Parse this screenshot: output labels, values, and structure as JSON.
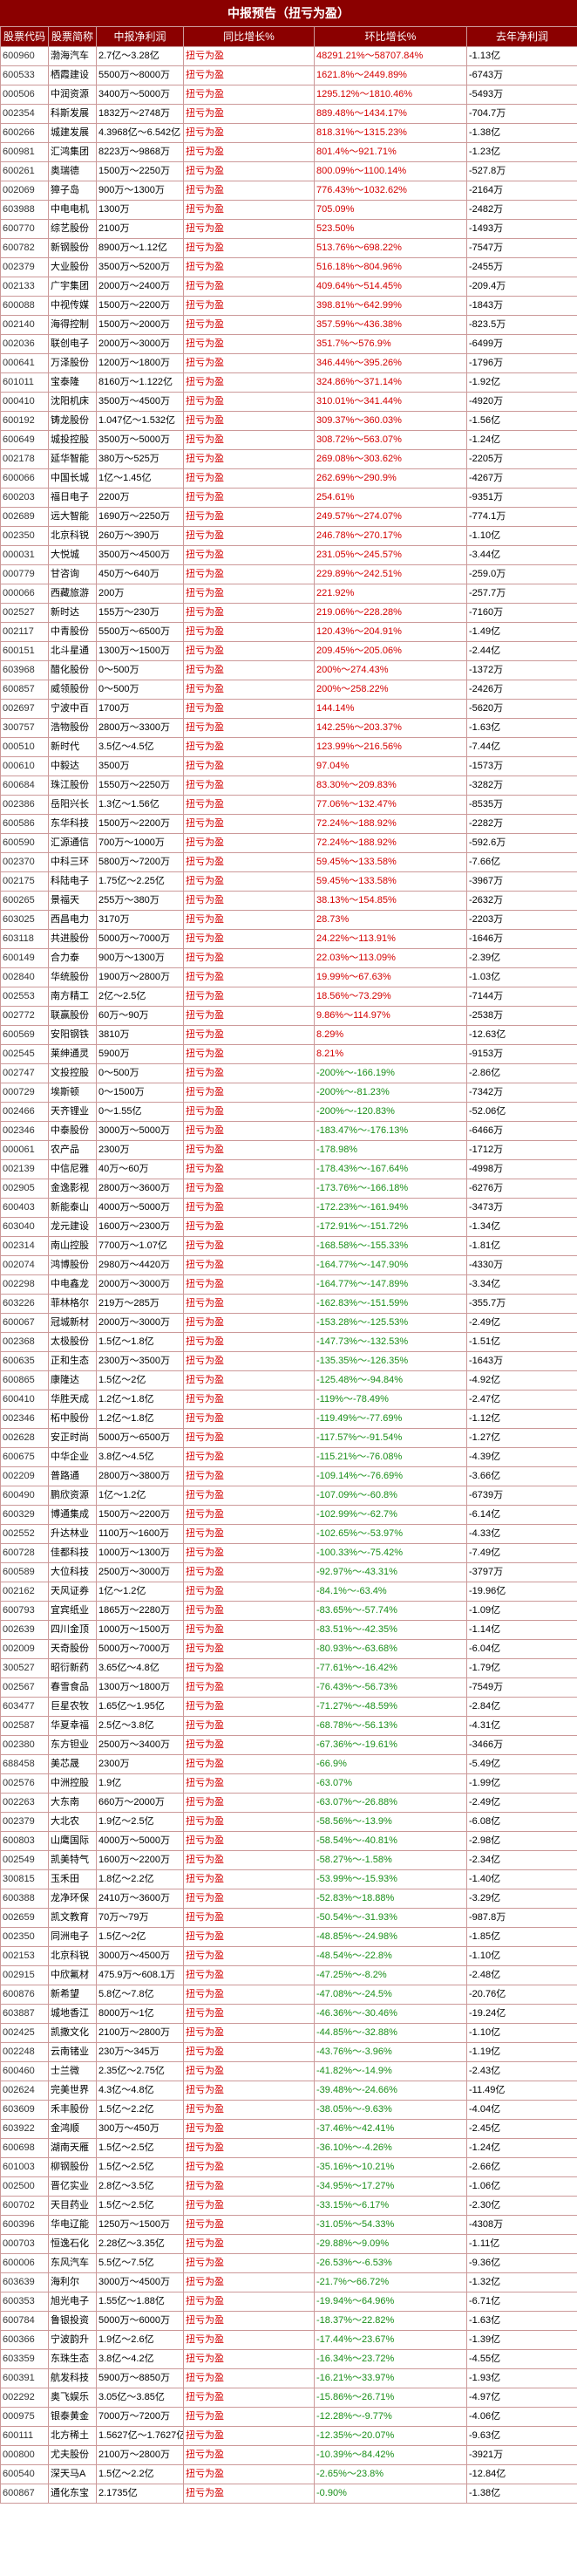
{
  "title": "中报预告（扭亏为盈）",
  "columns": [
    "股票代码",
    "股票简称",
    "中报净利润",
    "同比增长%",
    "环比增长%",
    "去年净利润"
  ],
  "rows": [
    [
      "600960",
      "渤海汽车",
      "2.7亿～3.28亿",
      "扭亏为盈",
      "48291.21%～58707.84%",
      "-1.13亿"
    ],
    [
      "600533",
      "栖霞建设",
      "5500万～8000万",
      "扭亏为盈",
      "1621.8%～2449.89%",
      "-6743万"
    ],
    [
      "000506",
      "中润资源",
      "3400万～5000万",
      "扭亏为盈",
      "1295.12%～1810.46%",
      "-5493万"
    ],
    [
      "002354",
      "科斯发展",
      "1832万～2748万",
      "扭亏为盈",
      "889.48%～1434.17%",
      "-704.7万"
    ],
    [
      "600266",
      "城建发展",
      "4.3968亿～6.542亿",
      "扭亏为盈",
      "818.31%～1315.23%",
      "-1.38亿"
    ],
    [
      "600981",
      "汇鸿集团",
      "8223万～9868万",
      "扭亏为盈",
      "801.4%～921.71%",
      "-1.23亿"
    ],
    [
      "600261",
      "奥瑞德",
      "1500万～2250万",
      "扭亏为盈",
      "800.09%～1100.14%",
      "-527.8万"
    ],
    [
      "002069",
      "獐子岛",
      "900万～1300万",
      "扭亏为盈",
      "776.43%～1032.62%",
      "-2164万"
    ],
    [
      "603988",
      "中电电机",
      "1300万",
      "扭亏为盈",
      "705.09%",
      "-2482万"
    ],
    [
      "600770",
      "综艺股份",
      "2100万",
      "扭亏为盈",
      "523.50%",
      "-1493万"
    ],
    [
      "600782",
      "新钢股份",
      "8900万～1.12亿",
      "扭亏为盈",
      "513.76%～698.22%",
      "-7547万"
    ],
    [
      "002379",
      "大业股份",
      "3500万～5200万",
      "扭亏为盈",
      "516.18%～804.96%",
      "-2455万"
    ],
    [
      "002133",
      "广宇集团",
      "2000万～2400万",
      "扭亏为盈",
      "409.64%～514.45%",
      "-209.4万"
    ],
    [
      "600088",
      "中视传媒",
      "1500万～2200万",
      "扭亏为盈",
      "398.81%～642.99%",
      "-1843万"
    ],
    [
      "002140",
      "海得控制",
      "1500万～2000万",
      "扭亏为盈",
      "357.59%～436.38%",
      "-823.5万"
    ],
    [
      "002036",
      "联创电子",
      "2000万～3000万",
      "扭亏为盈",
      "351.7%～576.9%",
      "-6499万"
    ],
    [
      "000641",
      "万泽股份",
      "1200万～1800万",
      "扭亏为盈",
      "346.44%～395.26%",
      "-1796万"
    ],
    [
      "601011",
      "宝泰隆",
      "8160万～1.122亿",
      "扭亏为盈",
      "324.86%～371.14%",
      "-1.92亿"
    ],
    [
      "000410",
      "沈阳机床",
      "3500万～4500万",
      "扭亏为盈",
      "310.01%～341.44%",
      "-4920万"
    ],
    [
      "600192",
      "铸龙股份",
      "1.047亿～1.532亿",
      "扭亏为盈",
      "309.37%～360.03%",
      "-1.56亿"
    ],
    [
      "600649",
      "城投控股",
      "3500万～5000万",
      "扭亏为盈",
      "308.72%～563.07%",
      "-1.24亿"
    ],
    [
      "002178",
      "延华智能",
      "380万～525万",
      "扭亏为盈",
      "269.08%～303.62%",
      "-2205万"
    ],
    [
      "600066",
      "中国长城",
      "1亿～1.45亿",
      "扭亏为盈",
      "262.69%～290.9%",
      "-4267万"
    ],
    [
      "600203",
      "福日电子",
      "2200万",
      "扭亏为盈",
      "254.61%",
      "-9351万"
    ],
    [
      "002689",
      "远大智能",
      "1690万～2250万",
      "扭亏为盈",
      "249.57%～274.07%",
      "-774.1万"
    ],
    [
      "002350",
      "北京科锐",
      "260万～390万",
      "扭亏为盈",
      "246.78%～270.17%",
      "-1.10亿"
    ],
    [
      "000031",
      "大悦城",
      "3500万～4500万",
      "扭亏为盈",
      "231.05%～245.57%",
      "-3.44亿"
    ],
    [
      "000779",
      "甘咨询",
      "450万～640万",
      "扭亏为盈",
      "229.89%～242.51%",
      "-259.0万"
    ],
    [
      "000066",
      "西藏旅游",
      "200万",
      "扭亏为盈",
      "221.92%",
      "-257.7万"
    ],
    [
      "002527",
      "新时达",
      "155万～230万",
      "扭亏为盈",
      "219.06%～228.28%",
      "-7160万"
    ],
    [
      "002117",
      "中青股份",
      "5500万～6500万",
      "扭亏为盈",
      "120.43%～204.91%",
      "-1.49亿"
    ],
    [
      "600151",
      "北斗星通",
      "1300万～1500万",
      "扭亏为盈",
      "209.45%～205.06%",
      "-2.44亿"
    ],
    [
      "603968",
      "醋化股份",
      "0～500万",
      "扭亏为盈",
      "200%～274.43%",
      "-1372万"
    ],
    [
      "600857",
      "威领股份",
      "0～500万",
      "扭亏为盈",
      "200%～258.22%",
      "-2426万"
    ],
    [
      "002697",
      "宁波中百",
      "1700万",
      "扭亏为盈",
      "144.14%",
      "-5620万"
    ],
    [
      "300757",
      "浩物股份",
      "2800万～3300万",
      "扭亏为盈",
      "142.25%～203.37%",
      "-1.63亿"
    ],
    [
      "000510",
      "新时代",
      "3.5亿～4.5亿",
      "扭亏为盈",
      "123.99%～216.56%",
      "-7.44亿"
    ],
    [
      "000610",
      "中毅达",
      "3500万",
      "扭亏为盈",
      "97.04%",
      "-1573万"
    ],
    [
      "600684",
      "珠江股份",
      "1550万～2250万",
      "扭亏为盈",
      "83.30%～209.83%",
      "-3282万"
    ],
    [
      "002386",
      "岳阳兴长",
      "1.3亿～1.56亿",
      "扭亏为盈",
      "77.06%～132.47%",
      "-8535万"
    ],
    [
      "600586",
      "东华科技",
      "1500万～2200万",
      "扭亏为盈",
      "72.24%～188.92%",
      "-2282万"
    ],
    [
      "600590",
      "汇源通信",
      "700万～1000万",
      "扭亏为盈",
      "72.24%～188.92%",
      "-592.6万"
    ],
    [
      "002370",
      "中科三环",
      "5800万～7200万",
      "扭亏为盈",
      "59.45%～133.58%",
      "-7.66亿"
    ],
    [
      "002175",
      "科陆电子",
      "1.75亿～2.25亿",
      "扭亏为盈",
      "59.45%～133.58%",
      "-3967万"
    ],
    [
      "600265",
      "景福天",
      "255万～380万",
      "扭亏为盈",
      "38.13%～154.85%",
      "-2632万"
    ],
    [
      "603025",
      "西昌电力",
      "3170万",
      "扭亏为盈",
      "28.73%",
      "-2203万"
    ],
    [
      "603118",
      "共进股份",
      "5000万～7000万",
      "扭亏为盈",
      "24.22%～113.91%",
      "-1646万"
    ],
    [
      "600149",
      "合力泰",
      "900万～1300万",
      "扭亏为盈",
      "22.03%～113.09%",
      "-2.39亿"
    ],
    [
      "002840",
      "华统股份",
      "1900万～2800万",
      "扭亏为盈",
      "19.99%～67.63%",
      "-1.03亿"
    ],
    [
      "002553",
      "南方精工",
      "2亿～2.5亿",
      "扭亏为盈",
      "18.56%～73.29%",
      "-7144万"
    ],
    [
      "002772",
      "联赢股份",
      "60万～90万",
      "扭亏为盈",
      "9.86%～114.97%",
      "-2538万"
    ],
    [
      "600569",
      "安阳钢铁",
      "3810万",
      "扭亏为盈",
      "8.29%",
      "-12.63亿"
    ],
    [
      "002545",
      "莱绅通灵",
      "5900万",
      "扭亏为盈",
      "8.21%",
      "-9153万"
    ],
    [
      "002747",
      "文投控股",
      "0～500万",
      "扭亏为盈",
      "-200%～-166.19%",
      "-2.86亿"
    ],
    [
      "000729",
      "埃斯顿",
      "0～1500万",
      "扭亏为盈",
      "-200%～-81.23%",
      "-7342万"
    ],
    [
      "002466",
      "天齐锂业",
      "0～1.55亿",
      "扭亏为盈",
      "-200%～-120.83%",
      "-52.06亿"
    ],
    [
      "002346",
      "中泰股份",
      "3000万～5000万",
      "扭亏为盈",
      "-183.47%～-176.13%",
      "-6466万"
    ],
    [
      "000061",
      "农产品",
      "2300万",
      "扭亏为盈",
      "-178.98%",
      "-1712万"
    ],
    [
      "002139",
      "中信尼雅",
      "40万～60万",
      "扭亏为盈",
      "-178.43%～-167.64%",
      "-4998万"
    ],
    [
      "002905",
      "金逸影视",
      "2800万～3600万",
      "扭亏为盈",
      "-173.76%～-166.18%",
      "-6276万"
    ],
    [
      "600403",
      "新能泰山",
      "4000万～5000万",
      "扭亏为盈",
      "-172.23%～-161.94%",
      "-3473万"
    ],
    [
      "603040",
      "龙元建设",
      "1600万～2300万",
      "扭亏为盈",
      "-172.91%～-151.72%",
      "-1.34亿"
    ],
    [
      "002314",
      "南山控股",
      "7700万～1.07亿",
      "扭亏为盈",
      "-168.58%～-155.33%",
      "-1.81亿"
    ],
    [
      "002074",
      "鸿博股份",
      "2980万～4420万",
      "扭亏为盈",
      "-164.77%～-147.90%",
      "-4330万"
    ],
    [
      "002298",
      "中电鑫龙",
      "2000万～3000万",
      "扭亏为盈",
      "-164.77%～-147.89%",
      "-3.34亿"
    ],
    [
      "603226",
      "菲林格尔",
      "219万～285万",
      "扭亏为盈",
      "-162.83%～-151.59%",
      "-355.7万"
    ],
    [
      "600067",
      "冠城新材",
      "2000万～3000万",
      "扭亏为盈",
      "-153.28%～-125.53%",
      "-2.49亿"
    ],
    [
      "002368",
      "太极股份",
      "1.5亿～1.8亿",
      "扭亏为盈",
      "-147.73%～-132.53%",
      "-1.51亿"
    ],
    [
      "600635",
      "正和生态",
      "2300万～3500万",
      "扭亏为盈",
      "-135.35%～-126.35%",
      "-1643万"
    ],
    [
      "600865",
      "康隆达",
      "1.5亿～2亿",
      "扭亏为盈",
      "-125.48%～-94.84%",
      "-4.92亿"
    ],
    [
      "600410",
      "华胜天成",
      "1.2亿～1.8亿",
      "扭亏为盈",
      "-119%～-78.49%",
      "-2.47亿"
    ],
    [
      "002346",
      "柘中股份",
      "1.2亿～1.8亿",
      "扭亏为盈",
      "-119.49%～-77.69%",
      "-1.12亿"
    ],
    [
      "002628",
      "安正时尚",
      "5000万～6500万",
      "扭亏为盈",
      "-117.57%～-91.54%",
      "-1.27亿"
    ],
    [
      "600675",
      "中华企业",
      "3.8亿～4.5亿",
      "扭亏为盈",
      "-115.21%～-76.08%",
      "-4.39亿"
    ],
    [
      "002209",
      "普路通",
      "2800万～3800万",
      "扭亏为盈",
      "-109.14%～-76.69%",
      "-3.66亿"
    ],
    [
      "600490",
      "鹏欣资源",
      "1亿～1.2亿",
      "扭亏为盈",
      "-107.09%～-60.8%",
      "-6739万"
    ],
    [
      "600329",
      "博通集成",
      "1500万～2200万",
      "扭亏为盈",
      "-102.99%～-62.7%",
      "-6.14亿"
    ],
    [
      "002552",
      "升达林业",
      "1100万～1600万",
      "扭亏为盈",
      "-102.65%～-53.97%",
      "-4.33亿"
    ],
    [
      "600728",
      "佳都科技",
      "1000万～1300万",
      "扭亏为盈",
      "-100.33%～-75.42%",
      "-7.49亿"
    ],
    [
      "600589",
      "大位科技",
      "2500万～3000万",
      "扭亏为盈",
      "-92.97%～-43.31%",
      "-3797万"
    ],
    [
      "002162",
      "天风证券",
      "1亿～1.2亿",
      "扭亏为盈",
      "-84.1%～-63.4%",
      "-19.96亿"
    ],
    [
      "600793",
      "宜宾纸业",
      "1865万～2280万",
      "扭亏为盈",
      "-83.65%～-57.74%",
      "-1.09亿"
    ],
    [
      "002639",
      "四川金顶",
      "1000万～1500万",
      "扭亏为盈",
      "-83.51%～-42.35%",
      "-1.14亿"
    ],
    [
      "002009",
      "天奇股份",
      "5000万～7000万",
      "扭亏为盈",
      "-80.93%～-63.68%",
      "-6.04亿"
    ],
    [
      "300527",
      "昭衍新药",
      "3.65亿～4.8亿",
      "扭亏为盈",
      "-77.61%～-16.42%",
      "-1.79亿"
    ],
    [
      "002567",
      "春雪食品",
      "1300万～1800万",
      "扭亏为盈",
      "-76.43%～-56.73%",
      "-7549万"
    ],
    [
      "603477",
      "巨星农牧",
      "1.65亿～1.95亿",
      "扭亏为盈",
      "-71.27%～-48.59%",
      "-2.84亿"
    ],
    [
      "002587",
      "华夏幸福",
      "2.5亿～3.8亿",
      "扭亏为盈",
      "-68.78%～-56.13%",
      "-4.31亿"
    ],
    [
      "002380",
      "东方钽业",
      "2500万～3400万",
      "扭亏为盈",
      "-67.36%～-19.61%",
      "-3466万"
    ],
    [
      "688458",
      "美芯晟",
      "2300万",
      "扭亏为盈",
      "-66.9%",
      "-5.49亿"
    ],
    [
      "002576",
      "中洲控股",
      "1.9亿",
      "扭亏为盈",
      "-63.07%",
      "-1.99亿"
    ],
    [
      "002263",
      "大东南",
      "660万～2000万",
      "扭亏为盈",
      "-63.07%～-26.88%",
      "-2.49亿"
    ],
    [
      "002379",
      "大北农",
      "1.9亿～2.5亿",
      "扭亏为盈",
      "-58.56%～-13.9%",
      "-6.08亿"
    ],
    [
      "600803",
      "山鹰国际",
      "4000万～5000万",
      "扭亏为盈",
      "-58.54%～-40.81%",
      "-2.98亿"
    ],
    [
      "002549",
      "凯美特气",
      "1600万～2200万",
      "扭亏为盈",
      "-58.27%～-1.58%",
      "-2.34亿"
    ],
    [
      "300815",
      "玉禾田",
      "1.8亿～2.2亿",
      "扭亏为盈",
      "-53.99%～-15.93%",
      "-1.40亿"
    ],
    [
      "600388",
      "龙净环保",
      "2410万～3600万",
      "扭亏为盈",
      "-52.83%～18.88%",
      "-3.29亿"
    ],
    [
      "002659",
      "凯文教育",
      "70万～79万",
      "扭亏为盈",
      "-50.54%～-31.93%",
      "-987.8万"
    ],
    [
      "002350",
      "同洲电子",
      "1.5亿～2亿",
      "扭亏为盈",
      "-48.85%～-24.98%",
      "-1.85亿"
    ],
    [
      "002153",
      "北京科锐",
      "3000万～4500万",
      "扭亏为盈",
      "-48.54%～-22.8%",
      "-1.10亿"
    ],
    [
      "002915",
      "中欣氟材",
      "475.9万～608.1万",
      "扭亏为盈",
      "-47.25%～-8.2%",
      "-2.48亿"
    ],
    [
      "600876",
      "新希望",
      "5.8亿～7.8亿",
      "扭亏为盈",
      "-47.08%～-24.5%",
      "-20.76亿"
    ],
    [
      "603887",
      "城地香江",
      "8000万～1亿",
      "扭亏为盈",
      "-46.36%～-30.46%",
      "-19.24亿"
    ],
    [
      "002425",
      "凯撒文化",
      "2100万～2800万",
      "扭亏为盈",
      "-44.85%～-32.88%",
      "-1.10亿"
    ],
    [
      "002248",
      "云南锗业",
      "230万～345万",
      "扭亏为盈",
      "-43.76%～-3.96%",
      "-1.19亿"
    ],
    [
      "600460",
      "士兰微",
      "2.35亿～2.75亿",
      "扭亏为盈",
      "-41.82%～-14.9%",
      "-2.43亿"
    ],
    [
      "002624",
      "完美世界",
      "4.3亿～4.8亿",
      "扭亏为盈",
      "-39.48%～-24.66%",
      "-11.49亿"
    ],
    [
      "603609",
      "禾丰股份",
      "1.5亿～2.2亿",
      "扭亏为盈",
      "-38.05%～-9.63%",
      "-4.04亿"
    ],
    [
      "603922",
      "金鸿顺",
      "300万～450万",
      "扭亏为盈",
      "-37.46%～42.41%",
      "-2.45亿"
    ],
    [
      "600698",
      "湖南天雁",
      "1.5亿～2.5亿",
      "扭亏为盈",
      "-36.10%～-4.26%",
      "-1.24亿"
    ],
    [
      "601003",
      "柳钢股份",
      "1.5亿～2.5亿",
      "扭亏为盈",
      "-35.16%～10.21%",
      "-2.66亿"
    ],
    [
      "002500",
      "晋亿实业",
      "2.8亿～3.5亿",
      "扭亏为盈",
      "-34.95%～17.27%",
      "-1.06亿"
    ],
    [
      "600702",
      "天目药业",
      "1.5亿～2.5亿",
      "扭亏为盈",
      "-33.15%～6.17%",
      "-2.30亿"
    ],
    [
      "600396",
      "华电辽能",
      "1250万～1500万",
      "扭亏为盈",
      "-31.05%～54.33%",
      "-4308万"
    ],
    [
      "000703",
      "恒逸石化",
      "2.28亿～3.35亿",
      "扭亏为盈",
      "-29.88%～9.09%",
      "-1.11亿"
    ],
    [
      "600006",
      "东风汽车",
      "5.5亿～7.5亿",
      "扭亏为盈",
      "-26.53%～-6.53%",
      "-9.36亿"
    ],
    [
      "603639",
      "海利尔",
      "3000万～4500万",
      "扭亏为盈",
      "-21.7%～66.72%",
      "-1.32亿"
    ],
    [
      "600353",
      "旭光电子",
      "1.55亿～1.88亿",
      "扭亏为盈",
      "-19.94%～64.96%",
      "-6.71亿"
    ],
    [
      "600784",
      "鲁银投资",
      "5000万～6000万",
      "扭亏为盈",
      "-18.37%～22.82%",
      "-1.63亿"
    ],
    [
      "600366",
      "宁波韵升",
      "1.9亿～2.6亿",
      "扭亏为盈",
      "-17.44%～23.67%",
      "-1.39亿"
    ],
    [
      "603359",
      "东珠生态",
      "3.8亿～4.2亿",
      "扭亏为盈",
      "-16.34%～23.72%",
      "-4.55亿"
    ],
    [
      "600391",
      "航发科技",
      "5900万～8850万",
      "扭亏为盈",
      "-16.21%～33.97%",
      "-1.93亿"
    ],
    [
      "002292",
      "奥飞娱乐",
      "3.05亿～3.85亿",
      "扭亏为盈",
      "-15.86%～26.71%",
      "-4.97亿"
    ],
    [
      "000975",
      "银泰黄金",
      "7000万～7200万",
      "扭亏为盈",
      "-12.28%～-9.77%",
      "-4.06亿"
    ],
    [
      "600111",
      "北方稀土",
      "1.5627亿～1.7627亿",
      "扭亏为盈",
      "-12.35%～20.07%",
      "-9.63亿"
    ],
    [
      "000800",
      "尤夫股份",
      "2100万～2800万",
      "扭亏为盈",
      "-10.39%～84.42%",
      "-3921万"
    ],
    [
      "600540",
      "深天马A",
      "1.5亿～2.2亿",
      "扭亏为盈",
      "-2.65%～23.8%",
      "-12.84亿"
    ],
    [
      "600867",
      "通化东宝",
      "2.1735亿",
      "扭亏为盈",
      "-0.90%",
      "-1.38亿"
    ]
  ]
}
